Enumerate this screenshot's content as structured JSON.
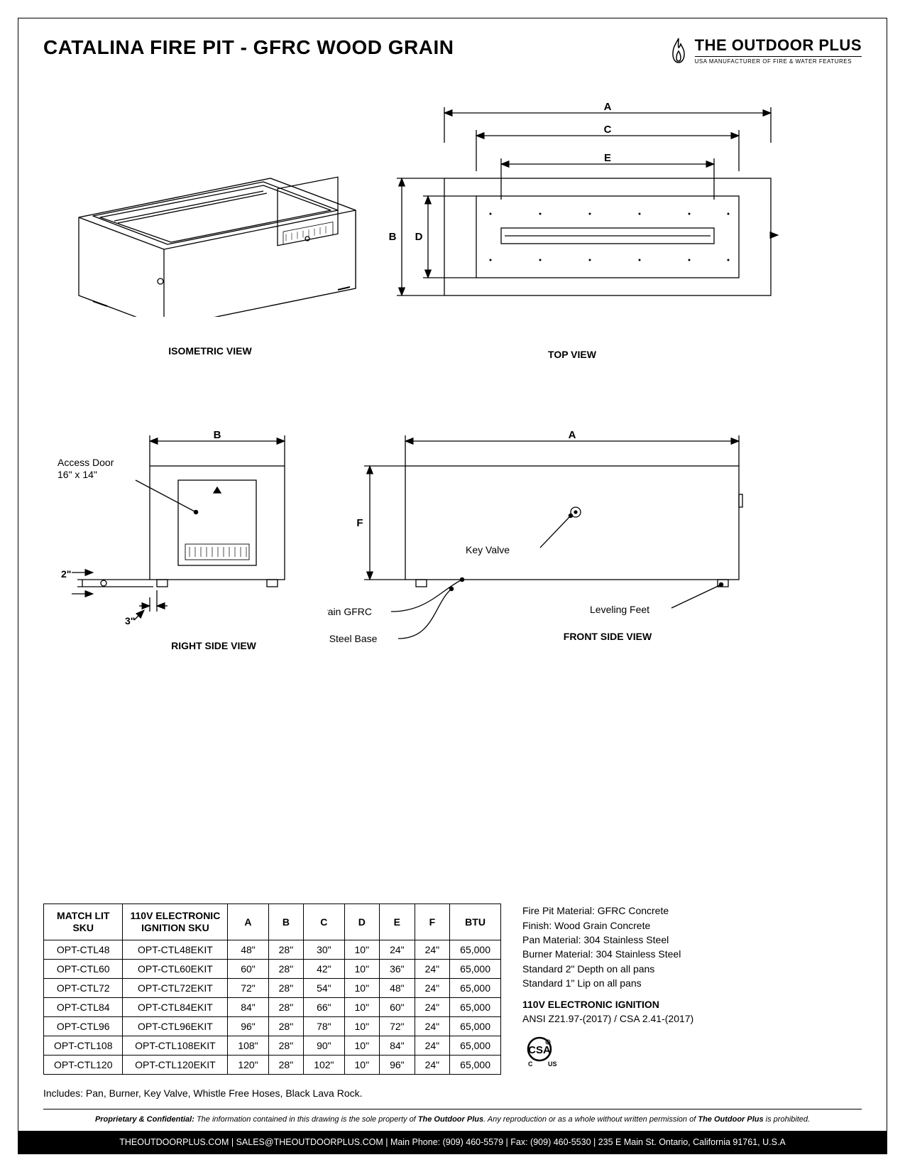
{
  "title": "CATALINA FIRE PIT - GFRC WOOD GRAIN",
  "brand": {
    "name": "THE OUTDOOR PLUS",
    "tagline": "USA MANUFACTURER OF FIRE & WATER FEATURES"
  },
  "views": {
    "isometric": "ISOMETRIC VIEW",
    "top": "TOP VIEW",
    "right": "RIGHT SIDE VIEW",
    "front": "FRONT SIDE VIEW"
  },
  "dim_labels": {
    "A": "A",
    "B": "B",
    "C": "C",
    "D": "D",
    "E": "E",
    "F": "F"
  },
  "callouts": {
    "access_door": "Access Door",
    "access_door_size": "16\" x 14\"",
    "two_inch": "2\"",
    "three_inch": "3\"",
    "wood_grain": "Wood Grain GFRC",
    "ss_base": "Stainless Steel Base",
    "key_valve": "Key Valve",
    "leveling_feet": "Leveling Feet"
  },
  "table": {
    "headers": {
      "match": "MATCH LIT\nSKU",
      "elec": "110V ELECTRONIC\nIGNITION SKU",
      "A": "A",
      "B": "B",
      "C": "C",
      "D": "D",
      "E": "E",
      "F": "F",
      "BTU": "BTU"
    },
    "rows": [
      {
        "match": "OPT-CTL48",
        "elec": "OPT-CTL48EKIT",
        "A": "48\"",
        "B": "28\"",
        "C": "30\"",
        "D": "10\"",
        "E": "24\"",
        "F": "24\"",
        "BTU": "65,000"
      },
      {
        "match": "OPT-CTL60",
        "elec": "OPT-CTL60EKIT",
        "A": "60\"",
        "B": "28\"",
        "C": "42\"",
        "D": "10\"",
        "E": "36\"",
        "F": "24\"",
        "BTU": "65,000"
      },
      {
        "match": "OPT-CTL72",
        "elec": "OPT-CTL72EKIT",
        "A": "72\"",
        "B": "28\"",
        "C": "54\"",
        "D": "10\"",
        "E": "48\"",
        "F": "24\"",
        "BTU": "65,000"
      },
      {
        "match": "OPT-CTL84",
        "elec": "OPT-CTL84EKIT",
        "A": "84\"",
        "B": "28\"",
        "C": "66\"",
        "D": "10\"",
        "E": "60\"",
        "F": "24\"",
        "BTU": "65,000"
      },
      {
        "match": "OPT-CTL96",
        "elec": "OPT-CTL96EKIT",
        "A": "96\"",
        "B": "28\"",
        "C": "78\"",
        "D": "10\"",
        "E": "72\"",
        "F": "24\"",
        "BTU": "65,000"
      },
      {
        "match": "OPT-CTL108",
        "elec": "OPT-CTL108EKIT",
        "A": "108\"",
        "B": "28\"",
        "C": "90\"",
        "D": "10\"",
        "E": "84\"",
        "F": "24\"",
        "BTU": "65,000"
      },
      {
        "match": "OPT-CTL120",
        "elec": "OPT-CTL120EKIT",
        "A": "120\"",
        "B": "28\"",
        "C": "102\"",
        "D": "10\"",
        "E": "96\"",
        "F": "24\"",
        "BTU": "65,000"
      }
    ]
  },
  "specs": {
    "lines": [
      "Fire Pit Material: GFRC Concrete",
      "Finish: Wood Grain Concrete",
      "Pan Material: 304 Stainless Steel",
      "Burner Material: 304 Stainless Steel",
      "Standard 2\" Depth on all pans",
      "Standard 1\" Lip on all pans"
    ],
    "ignition_title": "110V ELECTRONIC IGNITION",
    "ignition_std": "ANSI Z21.97-(2017) / CSA 2.41-(2017)"
  },
  "includes": "Includes: Pan, Burner, Key Valve, Whistle Free Hoses, Black Lava Rock.",
  "legal": {
    "label": "Proprietary & Confidential:",
    "text1": " The information contained in this drawing is the sole property of ",
    "brand": "The Outdoor Plus",
    "text2": ". Any reproduction or as a whole without written permission of ",
    "text3": " is prohibited."
  },
  "footer": "THEOUTDOORPLUS.COM  |  SALES@THEOUTDOORPLUS.COM  |  Main Phone: (909) 460-5579  |  Fax: (909) 460-5530  |  235 E Main St. Ontario, California 91761, U.S.A",
  "style": {
    "stroke": "#000000",
    "stroke_w": 1.3,
    "stroke_thin": 1,
    "arrow": "#000000"
  }
}
